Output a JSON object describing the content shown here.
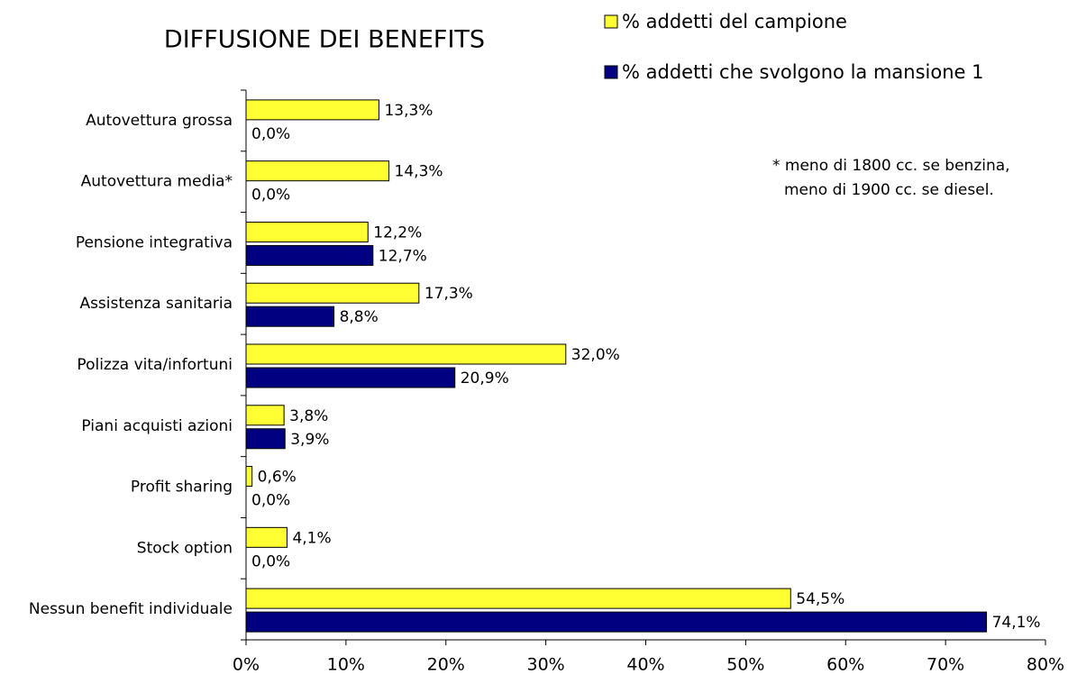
{
  "chart_data": {
    "type": "hbar",
    "title": "DIFFUSIONE DEI BENEFITS",
    "annotation": [
      "* meno di 1800 cc. se benzina,",
      "meno di 1900 cc. se diesel."
    ],
    "categories": [
      "Autovettura grossa",
      "Autovettura media*",
      "Pensione integrativa",
      "Assistenza sanitaria",
      "Polizza vita/infortuni",
      "Piani acquisti azioni",
      "Profit sharing",
      "Stock option",
      "Nessun benefit individuale"
    ],
    "series": [
      {
        "name": "% addetti del campione",
        "color": "#ffff33",
        "values": [
          13.3,
          14.3,
          12.2,
          17.3,
          32.0,
          3.8,
          0.6,
          4.1,
          54.5
        ],
        "value_labels": [
          "13,3%",
          "14,3%",
          "12,2%",
          "17,3%",
          "32,0%",
          "3,8%",
          "0,6%",
          "4,1%",
          "54,5%"
        ]
      },
      {
        "name": "% addetti che svolgono la mansione 1",
        "color": "#000080",
        "values": [
          0.0,
          0.0,
          12.7,
          8.8,
          20.9,
          3.9,
          0.0,
          0.0,
          74.1
        ],
        "value_labels": [
          "0,0%",
          "0,0%",
          "12,7%",
          "8,8%",
          "20,9%",
          "3,9%",
          "0,0%",
          "0,0%",
          "74,1%"
        ]
      }
    ],
    "xlim": [
      0,
      80
    ],
    "xticks": [
      {
        "value": 0,
        "label": "0%"
      },
      {
        "value": 10,
        "label": "10%"
      },
      {
        "value": 20,
        "label": "20%"
      },
      {
        "value": 30,
        "label": "30%"
      },
      {
        "value": 40,
        "label": "40%"
      },
      {
        "value": 50,
        "label": "50%"
      },
      {
        "value": 60,
        "label": "60%"
      },
      {
        "value": 70,
        "label": "70%"
      },
      {
        "value": 80,
        "label": "80%"
      }
    ],
    "legend": "top-right"
  }
}
